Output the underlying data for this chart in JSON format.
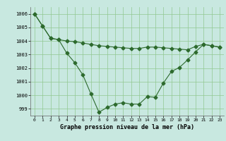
{
  "line1": {
    "x": [
      0,
      1,
      2,
      3,
      4,
      5,
      6,
      7,
      8,
      9,
      10,
      11,
      12,
      13,
      14,
      15,
      16,
      17,
      18,
      19,
      20,
      21,
      22,
      23
    ],
    "y": [
      1006.0,
      1005.1,
      1004.2,
      1004.1,
      1004.0,
      1003.95,
      1003.85,
      1003.75,
      1003.65,
      1003.6,
      1003.55,
      1003.5,
      1003.45,
      1003.45,
      1003.55,
      1003.55,
      1003.5,
      1003.45,
      1003.4,
      1003.35,
      1003.6,
      1003.75,
      1003.65,
      1003.55
    ]
  },
  "line2": {
    "x": [
      0,
      1,
      2,
      3,
      4,
      5,
      6,
      7,
      8,
      9,
      10,
      11,
      12,
      13,
      14,
      15,
      16,
      17,
      18,
      19,
      20,
      21,
      22,
      23
    ],
    "y": [
      1006.0,
      1005.1,
      1004.2,
      1004.1,
      1003.1,
      1002.4,
      1001.5,
      1000.1,
      998.75,
      999.1,
      999.35,
      999.45,
      999.35,
      999.35,
      999.9,
      999.85,
      1000.9,
      1001.75,
      1002.05,
      1002.6,
      1003.2,
      1003.75,
      1003.65,
      1003.55
    ]
  },
  "color": "#2d6a2d",
  "bg_color": "#c8e8e0",
  "grid_color": "#90c890",
  "ylim": [
    998.5,
    1006.5
  ],
  "yticks": [
    999,
    1000,
    1001,
    1002,
    1003,
    1004,
    1005,
    1006
  ],
  "xlim": [
    -0.5,
    23.5
  ],
  "xticks": [
    0,
    1,
    2,
    3,
    4,
    5,
    6,
    7,
    8,
    9,
    10,
    11,
    12,
    13,
    14,
    15,
    16,
    17,
    18,
    19,
    20,
    21,
    22,
    23
  ],
  "xlabel": "Graphe pression niveau de la mer (hPa)",
  "marker": "D",
  "markersize": 2.5,
  "linewidth": 0.8
}
